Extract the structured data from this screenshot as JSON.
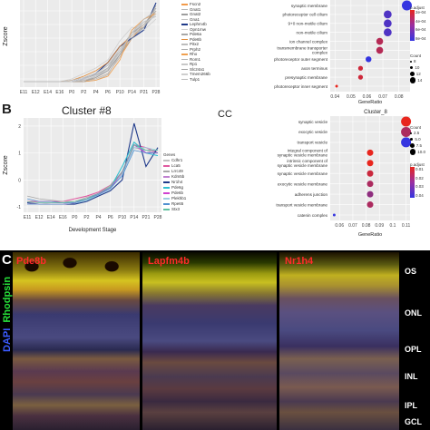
{
  "panel_a": {
    "ylabel": "Zscore",
    "xlabel": "",
    "legend_title": "",
    "legend": [
      "Fscn2",
      "Gnat1",
      "Gnat2",
      "Gna1",
      "Lephm4b",
      "Opn1mw",
      "Pde6a",
      "Pde6b",
      "Pitx2",
      "Prph2",
      "Rho",
      "Rom1",
      "Rp1",
      "Slc24a1",
      "Tmem266b",
      "Tulp1"
    ]
  },
  "panel_a_go": {
    "terms": [
      "synaptic membrane",
      "photoreceptor cell cilium",
      "9+0 non-motile cilium",
      "non-motile cilium",
      "ion channel complex",
      "transmembrane transporter complex",
      "photoreceptor outer segment",
      "axon terminus",
      "presynaptic membrane",
      "photoreceptor inner segment"
    ],
    "xlabel": "GeneRatio",
    "padj_title": "p.adjust",
    "padj_ticks": [
      "2e-04",
      "4e-04",
      "6e-04",
      "8e-04"
    ],
    "count_title": "Count",
    "count_ticks": [
      "8",
      "10",
      "12",
      "14"
    ]
  },
  "panel_b": {
    "letter": "B",
    "title": "Cluster #8",
    "ylabel": "Zscore",
    "xlabel": "Development Stage",
    "legend_title": "Genes",
    "legend": [
      "Cdhr1",
      "Lca5",
      "Lrrc49",
      "Kdm5b",
      "Nr1h4",
      "Pde6g",
      "Pde6b",
      "Plekhb1",
      "Rpe65",
      "Stx3"
    ]
  },
  "panel_b_go": {
    "cc_label": "CC",
    "title": "Cluster_8",
    "terms": [
      "synaptic vesicle",
      "exocytic vesicle",
      "transport vesicle",
      "integral component of synaptic vesicle membrane",
      "intrinsic component of synaptic vesicle membrane",
      "synaptic vesicle membrane",
      "exocytic vesicle membrane",
      "adherens junction",
      "transport vesicle membrane",
      "catenin complex"
    ],
    "xlabel": "GeneRatio",
    "count_title": "Count",
    "count_ticks": [
      "2.5",
      "5.0",
      "7.5",
      "10.0"
    ],
    "padj_title": "p.adjust",
    "padj_ticks": [
      "0.01",
      "0.02",
      "0.03",
      "0.04"
    ]
  },
  "panel_c": {
    "letter": "C",
    "stain_labels": [
      "Pde8b",
      "Lapfm4b",
      "Nr1h4"
    ],
    "dapi": "DAPI",
    "rhodopsin": "Rhodpsin",
    "layers": [
      "OS",
      "ONL",
      "OPL",
      "INL",
      "IPL",
      "GCL"
    ]
  },
  "chart_data": [
    {
      "type": "line",
      "x": [
        "E11",
        "E12",
        "E14",
        "E16",
        "P0",
        "P2",
        "P4",
        "P6",
        "P10",
        "P14",
        "P21",
        "P28"
      ],
      "xlim": [
        "E11",
        "P28"
      ],
      "grid": true,
      "legend_position": "right",
      "series": [
        {
          "name": "Fscn2",
          "values": [
            -0.6,
            -0.6,
            -0.6,
            -0.6,
            -0.6,
            -0.55,
            -0.5,
            -0.3,
            0.3,
            1.0,
            1.5,
            2.0
          ]
        },
        {
          "name": "Gnat1",
          "values": [
            -0.6,
            -0.6,
            -0.6,
            -0.6,
            -0.6,
            -0.6,
            -0.55,
            -0.35,
            0.4,
            1.1,
            1.4,
            1.9
          ]
        },
        {
          "name": "Gnat2",
          "values": [
            -0.6,
            -0.6,
            -0.6,
            -0.6,
            -0.6,
            -0.5,
            -0.3,
            0.0,
            0.6,
            1.2,
            1.5,
            2.1
          ]
        },
        {
          "name": "Gna1",
          "values": [
            -0.6,
            -0.6,
            -0.6,
            -0.6,
            -0.6,
            -0.55,
            -0.4,
            -0.2,
            0.5,
            1.1,
            1.6,
            1.8
          ]
        },
        {
          "name": "Lephm4b",
          "values": [
            -0.6,
            -0.6,
            -0.6,
            -0.6,
            -0.6,
            -0.5,
            -0.3,
            0.1,
            0.7,
            1.0,
            1.3,
            2.3
          ]
        },
        {
          "name": "Opn1mw",
          "values": [
            -0.6,
            -0.6,
            -0.6,
            -0.6,
            -0.5,
            -0.3,
            -0.1,
            0.2,
            0.9,
            1.4,
            1.3,
            1.7
          ]
        },
        {
          "name": "Pde6a",
          "values": [
            -0.6,
            -0.6,
            -0.6,
            -0.6,
            -0.6,
            -0.55,
            -0.45,
            -0.2,
            0.4,
            1.2,
            1.5,
            1.9
          ]
        },
        {
          "name": "Pde6b",
          "values": [
            -0.6,
            -0.6,
            -0.6,
            -0.6,
            -0.55,
            -0.4,
            -0.2,
            0.1,
            0.7,
            1.1,
            1.5,
            2.0
          ]
        },
        {
          "name": "Pitx2",
          "values": [
            -0.6,
            -0.6,
            -0.6,
            -0.6,
            -0.6,
            -0.6,
            -0.5,
            -0.3,
            0.3,
            1.3,
            1.6,
            1.8
          ]
        },
        {
          "name": "Prph2",
          "values": [
            -0.6,
            -0.6,
            -0.6,
            -0.6,
            -0.6,
            -0.55,
            -0.4,
            -0.1,
            0.5,
            1.2,
            1.4,
            2.0
          ]
        },
        {
          "name": "Rho",
          "values": [
            -0.6,
            -0.6,
            -0.6,
            -0.6,
            -0.6,
            -0.6,
            -0.55,
            -0.4,
            0.2,
            1.3,
            1.7,
            1.9
          ]
        },
        {
          "name": "Rom1",
          "values": [
            -0.6,
            -0.6,
            -0.6,
            -0.6,
            -0.6,
            -0.5,
            -0.35,
            -0.1,
            0.6,
            1.1,
            1.5,
            2.1
          ]
        },
        {
          "name": "Rp1",
          "values": [
            -0.6,
            -0.6,
            -0.6,
            -0.6,
            -0.6,
            -0.55,
            -0.4,
            -0.15,
            0.5,
            1.2,
            1.6,
            1.8
          ]
        },
        {
          "name": "Slc24a1",
          "values": [
            -0.6,
            -0.6,
            -0.6,
            -0.6,
            -0.6,
            -0.6,
            -0.45,
            -0.2,
            0.4,
            1.0,
            1.4,
            2.2
          ]
        },
        {
          "name": "Tmem266b",
          "values": [
            -0.6,
            -0.6,
            -0.6,
            -0.6,
            -0.6,
            -0.5,
            -0.3,
            0.0,
            0.6,
            1.1,
            1.5,
            1.9
          ]
        },
        {
          "name": "Tulp1",
          "values": [
            -0.6,
            -0.6,
            -0.6,
            -0.6,
            -0.55,
            -0.45,
            -0.3,
            0.0,
            0.5,
            1.2,
            1.7,
            2.0
          ]
        }
      ],
      "colors": [
        "#f29a4a",
        "#b5b5b5",
        "#9e9e9e",
        "#c4c4c4",
        "#1f3a8a",
        "#d0d0d0",
        "#a8a8a8",
        "#e08b3a",
        "#bdbdbd",
        "#aaaaaa",
        "#f0a050",
        "#b0b0b0",
        "#c8c8c8",
        "#a0a0a0",
        "#cfcfcf",
        "#bbbbbb"
      ]
    },
    {
      "type": "scatter",
      "categories": [
        "synaptic membrane",
        "photoreceptor cell cilium",
        "9+0 non-motile cilium",
        "non-motile cilium",
        "ion channel complex",
        "transmembrane transporter complex",
        "photoreceptor outer segment",
        "axon terminus",
        "presynaptic membrane",
        "photoreceptor inner segment"
      ],
      "x": [
        0.085,
        0.073,
        0.073,
        0.073,
        0.068,
        0.068,
        0.061,
        0.056,
        0.056,
        0.041
      ],
      "count": [
        14,
        12,
        12,
        12,
        11,
        11,
        10,
        9,
        9,
        7
      ],
      "padj": [
        0.0008,
        0.0007,
        0.0007,
        0.0007,
        0.0003,
        0.0003,
        0.0008,
        0.0002,
        0.0002,
        0.0001
      ],
      "xlabel": "GeneRatio",
      "xticks": [
        0.04,
        0.05,
        0.06,
        0.07,
        0.08
      ],
      "xlim": [
        0.037,
        0.087
      ],
      "colors": {
        "low": "#e8261e",
        "high": "#3535e0"
      }
    },
    {
      "type": "line",
      "title": "Cluster #8",
      "xlabel": "Development Stage",
      "ylabel": "Zscore",
      "x": [
        "E11",
        "E12",
        "E14",
        "E16",
        "P0",
        "P2",
        "P4",
        "P6",
        "P10",
        "P14",
        "P21",
        "P28"
      ],
      "ylim": [
        -1.2,
        2.3
      ],
      "yticks": [
        -1,
        0,
        1,
        2
      ],
      "grid": true,
      "legend_position": "right",
      "series": [
        {
          "name": "Cdhr1",
          "values": [
            -0.9,
            -0.9,
            -0.85,
            -0.85,
            -0.8,
            -0.7,
            -0.5,
            -0.3,
            0.2,
            1.4,
            1.1,
            1.1
          ]
        },
        {
          "name": "Lca5",
          "values": [
            -0.8,
            -0.8,
            -0.8,
            -0.8,
            -0.7,
            -0.6,
            -0.45,
            -0.2,
            0.3,
            1.3,
            1.2,
            1.0
          ]
        },
        {
          "name": "Lrrc49",
          "values": [
            -0.6,
            -0.7,
            -0.75,
            -0.8,
            -0.8,
            -0.65,
            -0.5,
            -0.2,
            0.25,
            1.2,
            1.1,
            1.0
          ]
        },
        {
          "name": "Kdm5b",
          "values": [
            -0.9,
            -0.9,
            -0.9,
            -0.9,
            -0.85,
            -0.75,
            -0.55,
            -0.3,
            0.2,
            1.3,
            1.0,
            1.1
          ]
        },
        {
          "name": "Nr1h4",
          "values": [
            -0.85,
            -0.9,
            -0.9,
            -0.9,
            -0.9,
            -0.8,
            -0.6,
            -0.4,
            0.0,
            2.1,
            0.5,
            1.2
          ]
        },
        {
          "name": "Pde6g",
          "values": [
            -0.9,
            -0.9,
            -0.9,
            -0.9,
            -0.85,
            -0.75,
            -0.55,
            -0.3,
            0.5,
            1.4,
            1.0,
            0.9
          ]
        },
        {
          "name": "Pde6b",
          "values": [
            -0.9,
            -0.9,
            -0.9,
            -0.9,
            -0.85,
            -0.7,
            -0.5,
            -0.3,
            0.3,
            1.3,
            1.0,
            1.0
          ]
        },
        {
          "name": "Plekhb1",
          "values": [
            -0.9,
            -0.9,
            -0.9,
            -0.9,
            -0.85,
            -0.75,
            -0.55,
            -0.35,
            0.2,
            1.2,
            1.2,
            1.1
          ]
        },
        {
          "name": "Rpe65",
          "values": [
            -0.7,
            -0.8,
            -0.8,
            -0.85,
            -0.85,
            -0.7,
            -0.55,
            -0.3,
            0.15,
            1.1,
            1.0,
            1.0
          ]
        },
        {
          "name": "Stx3",
          "values": [
            -0.8,
            -0.85,
            -0.85,
            -0.85,
            -0.8,
            -0.7,
            -0.5,
            -0.25,
            0.3,
            1.3,
            1.1,
            1.1
          ]
        }
      ],
      "colors": [
        "#bfbfbf",
        "#e05aa0",
        "#a8a8a8",
        "#c080d0",
        "#1f3a8a",
        "#30c0d0",
        "#d040d0",
        "#9fcfe0",
        "#5090d0",
        "#60c0a0"
      ]
    },
    {
      "type": "scatter",
      "categories": [
        "synaptic vesicle",
        "exocytic vesicle",
        "transport vesicle",
        "integral component of synaptic vesicle membrane",
        "intrinsic component of synaptic vesicle membrane",
        "synaptic vesicle membrane",
        "exocytic vesicle membrane",
        "adherens junction",
        "transport vesicle membrane",
        "catenin complex"
      ],
      "x": [
        0.11,
        0.11,
        0.11,
        0.083,
        0.083,
        0.083,
        0.083,
        0.083,
        0.083,
        0.056
      ],
      "count": [
        10,
        10,
        10,
        6,
        6,
        6,
        6,
        6,
        6,
        2
      ],
      "padj": [
        0.01,
        0.02,
        0.04,
        0.01,
        0.01,
        0.015,
        0.02,
        0.025,
        0.02,
        0.04
      ],
      "xlabel": "GeneRatio",
      "xticks": [
        0.06,
        0.07,
        0.08,
        0.09,
        0.1,
        0.11
      ],
      "xlim": [
        0.053,
        0.113
      ],
      "colors": {
        "low": "#e8261e",
        "high": "#3535e0"
      }
    }
  ]
}
